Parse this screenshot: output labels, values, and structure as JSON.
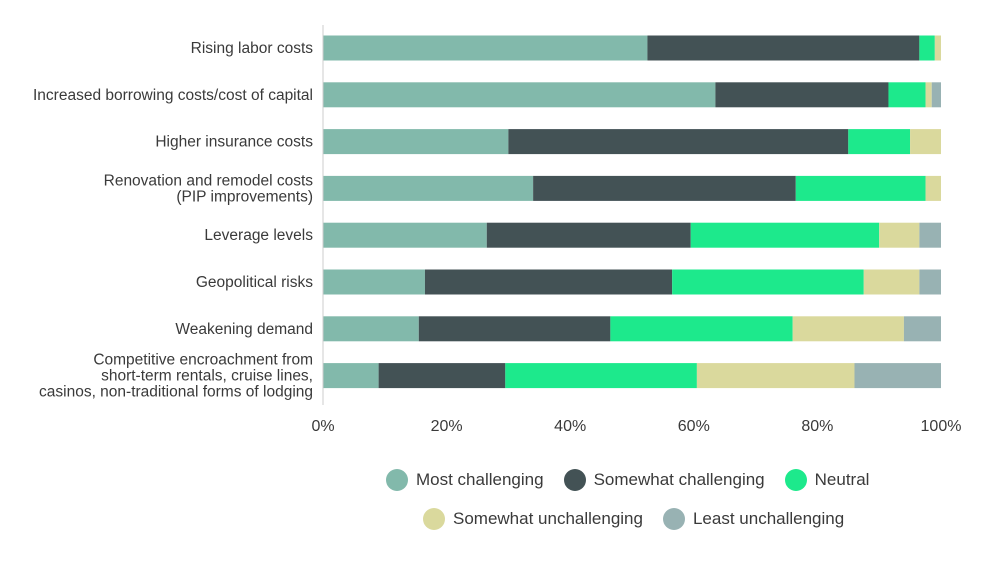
{
  "chart_data": {
    "type": "bar",
    "orientation": "horizontal",
    "stacked": true,
    "categories": [
      [
        "Rising labor costs"
      ],
      [
        "Increased borrowing costs/cost of capital"
      ],
      [
        "Higher insurance costs"
      ],
      [
        "Renovation and remodel costs",
        "(PIP improvements)"
      ],
      [
        "Leverage levels"
      ],
      [
        "Geopolitical risks"
      ],
      [
        "Weakening demand"
      ],
      [
        "Competitive encroachment from",
        "short-term rentals, cruise lines,",
        "casinos, non-traditional forms of lodging"
      ]
    ],
    "series": [
      {
        "name": "Most challenging",
        "color": "#82b9ab",
        "values": [
          52.5,
          63.5,
          30,
          34,
          26.5,
          16.5,
          15.5,
          9
        ]
      },
      {
        "name": "Somewhat challenging",
        "color": "#435255",
        "values": [
          44,
          28,
          55,
          42.5,
          33,
          40,
          31,
          20.5
        ]
      },
      {
        "name": "Neutral",
        "color": "#1de98c",
        "values": [
          2.5,
          6,
          10,
          21,
          30.5,
          31,
          29.5,
          31
        ]
      },
      {
        "name": "Somewhat unchallenging",
        "color": "#dad99d",
        "values": [
          1,
          1,
          5,
          2.5,
          6.5,
          9,
          18,
          25.5
        ]
      },
      {
        "name": "Least unchallenging",
        "color": "#98b2b3",
        "values": [
          0,
          1.5,
          0,
          0,
          3.5,
          3.5,
          6,
          14
        ]
      }
    ],
    "x_ticks": [
      "0%",
      "20%",
      "40%",
      "60%",
      "80%",
      "100%"
    ],
    "xlim": [
      0,
      100
    ],
    "legend_position": "bottom"
  }
}
